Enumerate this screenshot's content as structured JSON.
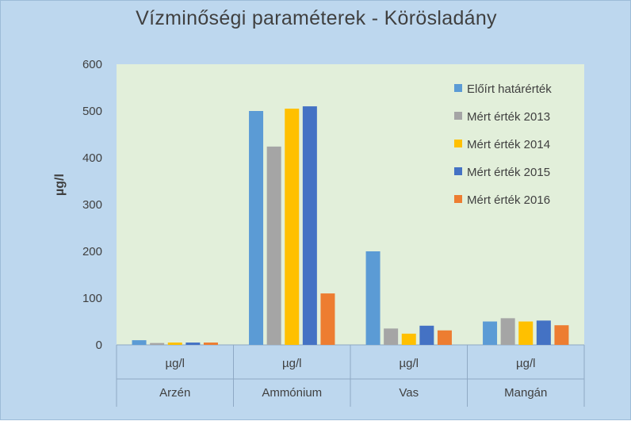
{
  "chart_data": {
    "type": "bar",
    "title": "Vízminőségi paraméterek - Körösladány",
    "ylabel": "µg/l",
    "ylim": [
      0,
      600
    ],
    "yticks": [
      0,
      100,
      200,
      300,
      400,
      500,
      600
    ],
    "grid": false,
    "legend_position": "top-right",
    "unit_row_label": "µg/l",
    "categories": [
      "Arzén",
      "Ammónium",
      "Vas",
      "Mangán"
    ],
    "series": [
      {
        "name": "Előírt határérték",
        "color": "#5b9bd5",
        "values": [
          10,
          500,
          200,
          50
        ]
      },
      {
        "name": "Mért érték 2013",
        "color": "#a5a5a5",
        "values": [
          4,
          424,
          35,
          57
        ]
      },
      {
        "name": "Mért érték 2014",
        "color": "#ffc000",
        "values": [
          5,
          505,
          24,
          50
        ]
      },
      {
        "name": "Mért érték 2015",
        "color": "#4472c4",
        "values": [
          5,
          510,
          41,
          52
        ]
      },
      {
        "name": "Mért érték 2016",
        "color": "#ed7d31",
        "values": [
          5,
          110,
          31,
          42
        ]
      }
    ],
    "colors": {
      "background": "#bdd7ee",
      "plot_area": "#e2efda",
      "text": "#404040",
      "axis_line": "#8fa9c4"
    }
  }
}
